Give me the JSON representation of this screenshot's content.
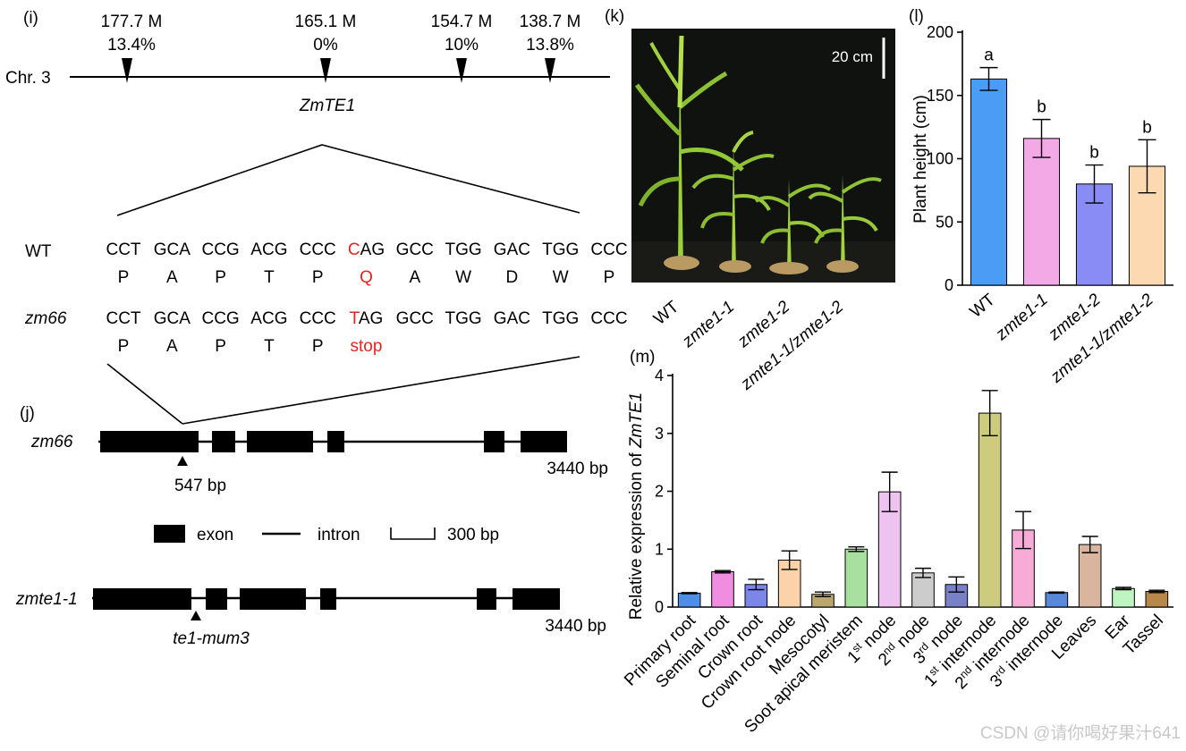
{
  "panel_labels": {
    "i": "(i)",
    "j": "(j)",
    "k": "(k)",
    "l": "(l)",
    "m": "(m)"
  },
  "panel_i": {
    "chromosome": "Chr. 3",
    "markers": [
      {
        "pos": "177.7 M",
        "pct": "13.4%"
      },
      {
        "pos": "165.1 M",
        "pct": "0%"
      },
      {
        "pos": "154.7 M",
        "pct": "10%"
      },
      {
        "pos": "138.7 M",
        "pct": "13.8%"
      }
    ],
    "gene": "ZmTE1",
    "wt_label": "WT",
    "wt_seq": [
      "CCT",
      "GCA",
      "CCG",
      "ACG",
      "CCC",
      "CAG",
      "GCC",
      "TGG",
      "GAC",
      "TGG",
      "CCC"
    ],
    "wt_aa": [
      "P",
      "A",
      "P",
      "T",
      "P",
      "Q",
      "A",
      "W",
      "D",
      "W",
      "P"
    ],
    "mut_label": "zm66",
    "mut_seq": [
      "CCT",
      "GCA",
      "CCG",
      "ACG",
      "CCC",
      "TAG",
      "GCC",
      "TGG",
      "GAC",
      "TGG",
      "CCC"
    ],
    "mut_aa": [
      "P",
      "A",
      "P",
      "T",
      "P",
      "stop"
    ],
    "highlight_color": "#e8231f"
  },
  "panel_j": {
    "allele1": {
      "name": "zm66",
      "length": "3440 bp",
      "site": "547 bp"
    },
    "legend": {
      "exon": "exon",
      "intron": "intron",
      "scale": "300 bp"
    },
    "allele2": {
      "name": "zmte1-1",
      "length": "3440 bp",
      "site": "te1-mum3"
    }
  },
  "panel_k": {
    "scale_bar": "20 cm",
    "labels": [
      "WT",
      "zmte1-1",
      "zmte1-2",
      "zmte1-1/zmte1-2"
    ]
  },
  "watermark": "CSDN @请你喝好果汁641",
  "chart_data": [
    {
      "id": "l",
      "type": "bar",
      "title": "",
      "ylabel": "Plant height (cm)",
      "xlabel": "",
      "ylim": [
        0,
        200
      ],
      "yticks": [
        0,
        50,
        100,
        150,
        200
      ],
      "categories": [
        "WT",
        "zmte1-1",
        "zmte1-2",
        "zmte1-1/zmte1-2"
      ],
      "values": [
        163,
        116,
        80,
        94
      ],
      "errors": [
        9,
        15,
        15,
        21
      ],
      "significance": [
        "a",
        "b",
        "b",
        "b"
      ],
      "colors": [
        "#4a9cf4",
        "#f2a9e6",
        "#8a8cf5",
        "#fcd9b0"
      ]
    },
    {
      "id": "m",
      "type": "bar",
      "title": "",
      "ylabel": "Relative expression of ZmTE1",
      "xlabel": "",
      "ylim": [
        0,
        4
      ],
      "yticks": [
        0,
        1,
        2,
        3,
        4
      ],
      "categories": [
        "Primary root",
        "Seminal root",
        "Crown root",
        "Crown root node",
        "Mesocotyl",
        "Soot apical meristem",
        "1st node",
        "2nd node",
        "3rd node",
        "1st internode",
        "2nd internode",
        "3rd internode",
        "Leaves",
        "Ear",
        "Tassel"
      ],
      "values": [
        0.24,
        0.61,
        0.39,
        0.81,
        0.22,
        1.0,
        1.99,
        0.59,
        0.39,
        3.35,
        1.33,
        0.25,
        1.08,
        0.32,
        0.27
      ],
      "errors": [
        0.01,
        0.02,
        0.09,
        0.16,
        0.04,
        0.04,
        0.34,
        0.08,
        0.13,
        0.39,
        0.32,
        0.01,
        0.14,
        0.02,
        0.02
      ],
      "colors": [
        "#4d8fe6",
        "#f08de0",
        "#7c86e6",
        "#fcd3a8",
        "#b8a86e",
        "#a8e0a0",
        "#efc3f0",
        "#cccccc",
        "#7880c8",
        "#cdcb7e",
        "#f7abd6",
        "#5a88d8",
        "#d8b59c",
        "#bff5c0",
        "#b88848"
      ]
    }
  ]
}
